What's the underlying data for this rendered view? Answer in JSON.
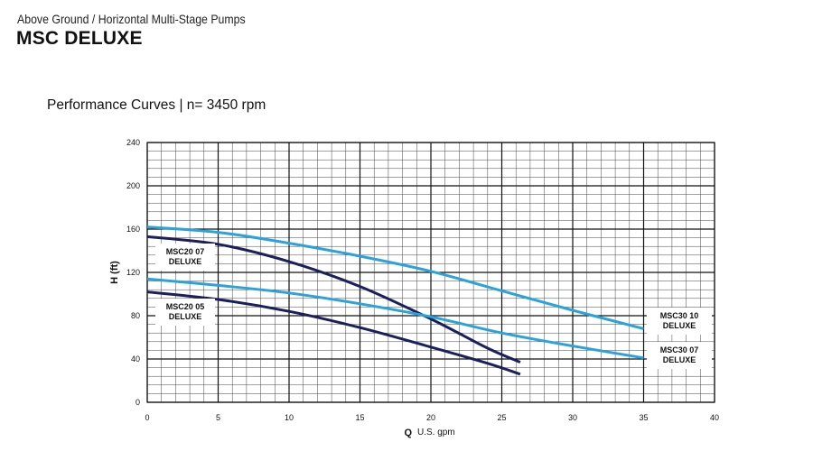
{
  "header": {
    "subtitle": "Above Ground / Horizontal Multi-Stage Pumps",
    "title": "MSC DELUXE"
  },
  "chart_data": {
    "type": "line",
    "title": "Performance Curves |  n= 3450 rpm",
    "xlabel_symbol": "Q",
    "xlabel": "U.S. gpm",
    "ylabel": "H (ft)",
    "xlim": [
      0,
      40
    ],
    "ylim": [
      0,
      240
    ],
    "x_ticks": [
      0,
      5,
      10,
      15,
      20,
      25,
      30,
      35,
      40
    ],
    "y_ticks": [
      0,
      40,
      80,
      120,
      160,
      200,
      240
    ],
    "grid": true,
    "series": [
      {
        "name": "MSC20 07 DELUXE",
        "label_lines": [
          "MSC20 07",
          "DELUXE"
        ],
        "color": "#1b1f5e",
        "x": [
          0,
          5,
          10,
          15,
          20,
          24,
          26.3
        ],
        "y": [
          153,
          146,
          130,
          107,
          77,
          50,
          37
        ]
      },
      {
        "name": "MSC20 05 DELUXE",
        "label_lines": [
          "MSC20 05",
          "DELUXE"
        ],
        "color": "#1b1f5e",
        "x": [
          0,
          5,
          10,
          15,
          20,
          24,
          26.3
        ],
        "y": [
          102,
          95,
          84,
          69,
          51,
          36,
          26
        ]
      },
      {
        "name": "MSC30 10 DELUXE",
        "label_lines": [
          "MSC30 10",
          "DELUXE"
        ],
        "color": "#2aa3dc",
        "x": [
          0,
          5,
          10,
          15,
          20,
          25,
          30,
          35
        ],
        "y": [
          162,
          157,
          147,
          135,
          121,
          103,
          85,
          68
        ]
      },
      {
        "name": "MSC30 07 DELUXE",
        "label_lines": [
          "MSC30 07",
          "DELUXE"
        ],
        "color": "#2aa3dc",
        "x": [
          0,
          5,
          10,
          15,
          20,
          25,
          30,
          35
        ],
        "y": [
          114,
          108,
          101,
          91,
          79,
          64,
          52,
          41
        ]
      }
    ]
  }
}
